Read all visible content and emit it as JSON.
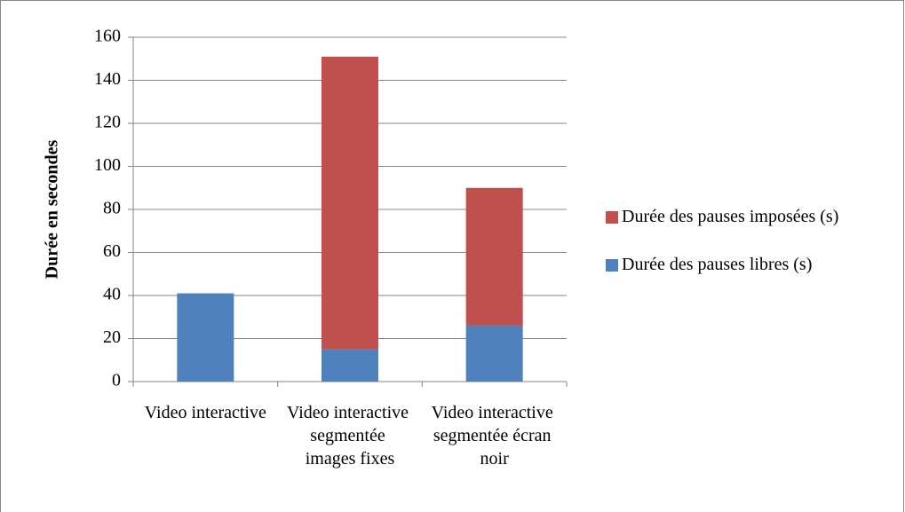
{
  "chart_data": {
    "type": "stacked_bar",
    "y_label": "Durée en secondes",
    "categories": [
      "Video interactive",
      "Video interactive segmentée images fixes",
      "Video interactive segmentée écran noir"
    ],
    "series": [
      {
        "name": "Durée des pauses libres (s)",
        "color": "#4f81bd",
        "values": [
          41,
          15,
          26
        ]
      },
      {
        "name": "Durée des pauses imposées (s)",
        "color": "#c0504d",
        "values": [
          0,
          136,
          64
        ]
      }
    ],
    "ylim": [
      0,
      160
    ],
    "yticks": [
      0,
      20,
      40,
      60,
      80,
      100,
      120,
      140,
      160
    ],
    "grid": true,
    "legend": "right"
  }
}
